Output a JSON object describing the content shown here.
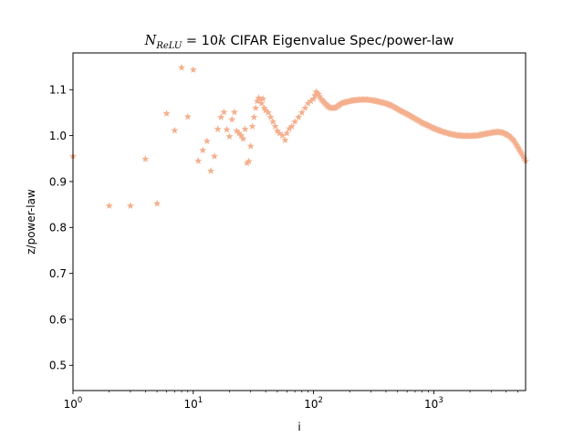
{
  "chart_data": {
    "type": "scatter",
    "title_math_n": "N",
    "title_math_sub": "ReLU",
    "title_math_eq": " = 10",
    "title_math_k": "k",
    "title_rest": " CIFAR Eigenvalue Spec/power-law",
    "xlabel": "i",
    "ylabel": "z/power-law",
    "xscale": "log",
    "xlim": [
      1,
      5800
    ],
    "ylim": [
      0.445,
      1.18
    ],
    "x_ticks": [
      {
        "value": 1,
        "base": "10",
        "exp": "0"
      },
      {
        "value": 10,
        "base": "10",
        "exp": "1"
      },
      {
        "value": 100,
        "base": "10",
        "exp": "2"
      },
      {
        "value": 1000,
        "base": "10",
        "exp": "3"
      }
    ],
    "y_ticks": [
      {
        "value": 0.5,
        "label": "0.5"
      },
      {
        "value": 0.6,
        "label": "0.6"
      },
      {
        "value": 0.7,
        "label": "0.7"
      },
      {
        "value": 0.8,
        "label": "0.8"
      },
      {
        "value": 0.9,
        "label": "0.9"
      },
      {
        "value": 1.0,
        "label": "1.0"
      },
      {
        "value": 1.1,
        "label": "1.1"
      }
    ],
    "grid": false,
    "legend": "none",
    "marker": "star",
    "color": "#f4b08e",
    "points": [
      [
        1,
        0.955
      ],
      [
        2,
        0.847
      ],
      [
        3,
        0.847
      ],
      [
        4,
        0.949
      ],
      [
        5,
        0.852
      ],
      [
        6,
        1.048
      ],
      [
        7,
        1.011
      ],
      [
        8,
        1.148
      ],
      [
        9,
        1.041
      ],
      [
        10,
        1.143
      ],
      [
        11,
        0.945
      ],
      [
        12,
        0.968
      ],
      [
        13,
        0.988
      ],
      [
        14,
        0.923
      ],
      [
        15,
        0.955
      ],
      [
        16,
        1.014
      ],
      [
        17,
        1.04
      ],
      [
        18,
        1.051
      ],
      [
        19,
        1.013
      ],
      [
        20,
        0.998
      ],
      [
        21,
        1.035
      ],
      [
        22,
        1.051
      ],
      [
        23,
        1.01
      ],
      [
        24,
        1.005
      ],
      [
        25,
        1.0
      ],
      [
        26,
        0.993
      ],
      [
        27,
        1.014
      ],
      [
        28,
        0.94
      ],
      [
        29,
        0.944
      ],
      [
        30,
        0.977
      ],
      [
        31,
        1.02
      ],
      [
        32,
        1.04
      ],
      [
        33,
        1.06
      ],
      [
        34,
        1.075
      ],
      [
        35,
        1.082
      ],
      [
        36,
        1.078
      ],
      [
        37,
        1.07
      ],
      [
        38,
        1.08
      ],
      [
        39,
        1.06
      ],
      [
        40,
        1.055
      ],
      [
        42,
        1.05
      ],
      [
        44,
        1.04
      ],
      [
        46,
        1.03
      ],
      [
        48,
        1.02
      ],
      [
        50,
        1.01
      ],
      [
        52,
        1.005
      ],
      [
        55,
        1.0
      ],
      [
        58,
        0.99
      ],
      [
        60,
        1.005
      ],
      [
        63,
        1.015
      ],
      [
        66,
        1.02
      ],
      [
        70,
        1.03
      ],
      [
        75,
        1.04
      ],
      [
        80,
        1.05
      ],
      [
        85,
        1.06
      ],
      [
        90,
        1.07
      ],
      [
        95,
        1.075
      ],
      [
        100,
        1.08
      ],
      [
        105,
        1.095
      ],
      [
        110,
        1.09
      ],
      [
        115,
        1.08
      ],
      [
        120,
        1.075
      ],
      [
        130,
        1.065
      ],
      [
        140,
        1.06
      ],
      [
        150,
        1.06
      ],
      [
        160,
        1.065
      ],
      [
        170,
        1.07
      ],
      [
        180,
        1.072
      ],
      [
        200,
        1.075
      ],
      [
        220,
        1.077
      ],
      [
        250,
        1.078
      ],
      [
        280,
        1.078
      ],
      [
        320,
        1.076
      ],
      [
        360,
        1.073
      ],
      [
        400,
        1.07
      ],
      [
        450,
        1.065
      ],
      [
        500,
        1.058
      ],
      [
        550,
        1.052
      ],
      [
        600,
        1.047
      ],
      [
        700,
        1.037
      ],
      [
        800,
        1.028
      ],
      [
        900,
        1.022
      ],
      [
        1000,
        1.016
      ],
      [
        1200,
        1.008
      ],
      [
        1400,
        1.003
      ],
      [
        1600,
        1.0
      ],
      [
        1800,
        0.999
      ],
      [
        2000,
        0.999
      ],
      [
        2300,
        1.0
      ],
      [
        2600,
        1.003
      ],
      [
        3000,
        1.006
      ],
      [
        3400,
        1.008
      ],
      [
        3800,
        1.006
      ],
      [
        4200,
        1.0
      ],
      [
        4600,
        0.99
      ],
      [
        5000,
        0.975
      ],
      [
        5400,
        0.96
      ],
      [
        5800,
        0.945
      ]
    ],
    "dense_ranges": [
      [
        100,
        5800
      ]
    ]
  }
}
